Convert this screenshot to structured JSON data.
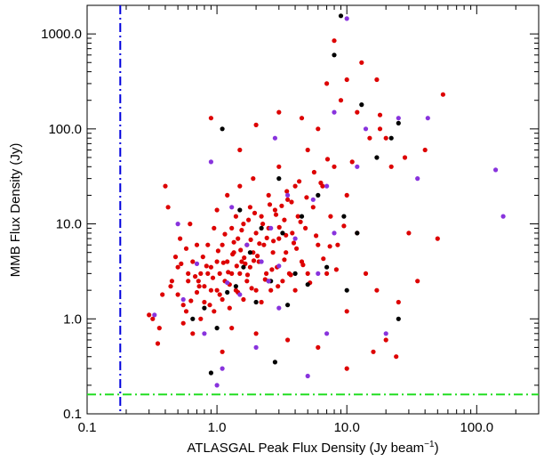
{
  "chart_data": {
    "type": "scatter",
    "xlabel": "ATLASGAL Peak Flux Density (Jy beam",
    "xlabel_superscript": "−1",
    "xlabel_suffix": ")",
    "ylabel": "MMB Flux Density (Jy)",
    "xscale": "log",
    "yscale": "log",
    "xlim": [
      0.1,
      300
    ],
    "ylim": [
      0.1,
      2000
    ],
    "xticks": [
      0.1,
      1,
      10,
      100
    ],
    "xtick_labels": [
      "0.1",
      "1.0",
      "10.0",
      "100.0"
    ],
    "yticks": [
      0.1,
      1,
      10,
      100,
      1000
    ],
    "ytick_labels": [
      "0.1",
      "1.0",
      "10.0",
      "100.0",
      "1000.0"
    ],
    "grid": false,
    "reference_lines": [
      {
        "orientation": "vertical",
        "value": 0.18,
        "color": "#0000dd",
        "style": "dash-dot"
      },
      {
        "orientation": "horizontal",
        "value": 0.16,
        "color": "#22dd22",
        "style": "dash-dot"
      }
    ],
    "series": [
      {
        "color": "#dd0000",
        "points": [
          [
            0.3,
            1.1
          ],
          [
            0.35,
            0.55
          ],
          [
            0.38,
            1.8
          ],
          [
            0.4,
            25
          ],
          [
            0.45,
            2.5
          ],
          [
            0.5,
            1.8
          ],
          [
            0.5,
            3.5
          ],
          [
            0.52,
            7
          ],
          [
            0.55,
            1.4
          ],
          [
            0.58,
            1.2
          ],
          [
            0.6,
            2.5
          ],
          [
            0.6,
            3
          ],
          [
            0.62,
            10
          ],
          [
            0.65,
            4
          ],
          [
            0.7,
            1.9
          ],
          [
            0.7,
            6
          ],
          [
            0.72,
            2.5
          ],
          [
            0.75,
            3
          ],
          [
            0.78,
            4.5
          ],
          [
            0.8,
            1.5
          ],
          [
            0.8,
            2.2
          ],
          [
            0.85,
            3
          ],
          [
            0.85,
            6
          ],
          [
            0.9,
            2
          ],
          [
            0.9,
            3.5
          ],
          [
            0.95,
            1.2
          ],
          [
            0.95,
            9
          ],
          [
            1.0,
            2
          ],
          [
            1.0,
            4
          ],
          [
            1.0,
            14
          ],
          [
            1.05,
            3
          ],
          [
            1.1,
            1.6
          ],
          [
            1.1,
            6
          ],
          [
            1.15,
            2.5
          ],
          [
            1.2,
            4
          ],
          [
            1.2,
            20
          ],
          [
            1.25,
            1.3
          ],
          [
            1.3,
            3
          ],
          [
            1.3,
            9
          ],
          [
            1.35,
            5
          ],
          [
            1.4,
            2
          ],
          [
            1.4,
            12
          ],
          [
            1.45,
            7
          ],
          [
            1.5,
            3
          ],
          [
            1.5,
            25
          ],
          [
            1.55,
            4
          ],
          [
            1.6,
            1.6
          ],
          [
            1.6,
            10
          ],
          [
            1.7,
            6
          ],
          [
            1.7,
            2.5
          ],
          [
            1.8,
            15
          ],
          [
            1.8,
            3.5
          ],
          [
            1.9,
            5
          ],
          [
            1.9,
            30
          ],
          [
            2.0,
            2
          ],
          [
            2.0,
            8
          ],
          [
            2.1,
            4
          ],
          [
            2.2,
            12
          ],
          [
            2.2,
            1.5
          ],
          [
            2.3,
            6
          ],
          [
            2.4,
            3
          ],
          [
            2.5,
            20
          ],
          [
            2.5,
            9
          ],
          [
            2.6,
            2
          ],
          [
            2.7,
            5
          ],
          [
            2.8,
            14
          ],
          [
            2.9,
            3.5
          ],
          [
            3.0,
            7
          ],
          [
            3.0,
            40
          ],
          [
            3.2,
            2.5
          ],
          [
            3.3,
            11
          ],
          [
            3.4,
            5
          ],
          [
            3.5,
            18
          ],
          [
            3.6,
            3
          ],
          [
            3.8,
            8
          ],
          [
            4.0,
            25
          ],
          [
            4.0,
            2
          ],
          [
            4.2,
            12
          ],
          [
            4.5,
            4
          ],
          [
            4.8,
            9
          ],
          [
            5.0,
            60
          ],
          [
            5.0,
            3
          ],
          [
            5.5,
            15
          ],
          [
            6.0,
            6
          ],
          [
            6.0,
            100
          ],
          [
            6.5,
            25
          ],
          [
            7.0,
            3
          ],
          [
            7.5,
            12
          ],
          [
            8.0,
            40
          ],
          [
            8.5,
            6
          ],
          [
            9.0,
            200
          ],
          [
            10.0,
            20
          ],
          [
            10.0,
            1.2
          ],
          [
            11.0,
            45
          ],
          [
            12.0,
            8
          ],
          [
            13.0,
            500
          ],
          [
            14.0,
            3
          ],
          [
            15.0,
            80
          ],
          [
            17.0,
            2
          ],
          [
            18.0,
            100
          ],
          [
            20.0,
            0.6
          ],
          [
            22.0,
            40
          ],
          [
            25.0,
            1.5
          ],
          [
            30.0,
            8
          ],
          [
            35.0,
            2.5
          ],
          [
            40.0,
            60
          ],
          [
            50.0,
            7
          ],
          [
            55.0,
            230
          ],
          [
            8.0,
            850
          ],
          [
            12.0,
            150
          ],
          [
            0.42,
            15
          ],
          [
            0.55,
            0.9
          ],
          [
            0.65,
            0.7
          ],
          [
            0.75,
            1.0
          ],
          [
            1.1,
            0.45
          ],
          [
            1.3,
            0.8
          ],
          [
            2.0,
            0.7
          ],
          [
            3.5,
            0.6
          ],
          [
            6.0,
            0.5
          ],
          [
            10.0,
            0.3
          ],
          [
            16.0,
            0.45
          ],
          [
            24.0,
            0.4
          ],
          [
            0.48,
            4.5
          ],
          [
            0.58,
            5.5
          ],
          [
            0.68,
            2.8
          ],
          [
            0.88,
            1.4
          ],
          [
            1.05,
            1.8
          ],
          [
            1.25,
            2.3
          ],
          [
            1.45,
            1.9
          ],
          [
            1.65,
            3.8
          ],
          [
            1.85,
            2.1
          ],
          [
            2.05,
            4.6
          ],
          [
            2.35,
            2.6
          ],
          [
            2.65,
            3.3
          ],
          [
            2.95,
            2.2
          ],
          [
            3.3,
            4.2
          ],
          [
            3.7,
            2.9
          ],
          [
            4.1,
            5.5
          ],
          [
            4.6,
            3.7
          ],
          [
            5.2,
            2.4
          ],
          [
            5.8,
            7.5
          ],
          [
            6.6,
            4.3
          ],
          [
            7.4,
            5.8
          ],
          [
            8.3,
            3.3
          ],
          [
            9.5,
            9.5
          ],
          [
            1.15,
            7.8
          ],
          [
            1.35,
            6.4
          ],
          [
            1.55,
            8.6
          ],
          [
            1.75,
            11
          ],
          [
            1.95,
            13
          ],
          [
            2.25,
            10
          ],
          [
            2.55,
            16
          ],
          [
            2.85,
            12.5
          ],
          [
            3.15,
            15.5
          ],
          [
            3.45,
            22
          ],
          [
            3.75,
            17
          ],
          [
            4.3,
            28
          ],
          [
            4.9,
            19
          ],
          [
            5.6,
            35
          ],
          [
            6.3,
            27
          ],
          [
            7.1,
            48
          ],
          [
            0.32,
            1.0
          ],
          [
            0.36,
            0.8
          ],
          [
            0.44,
            2.2
          ],
          [
            0.53,
            3.8
          ],
          [
            0.63,
            1.55
          ],
          [
            0.73,
            2.2
          ],
          [
            0.83,
            3.6
          ],
          [
            0.93,
            2.7
          ],
          [
            1.02,
            5.2
          ],
          [
            1.12,
            3.9
          ],
          [
            1.22,
            3.1
          ],
          [
            1.32,
            4.8
          ],
          [
            1.42,
            3.6
          ],
          [
            1.52,
            5.3
          ],
          [
            1.62,
            4.4
          ],
          [
            1.72,
            2.9
          ],
          [
            1.82,
            6.8
          ],
          [
            1.92,
            4.1
          ],
          [
            2.12,
            6.2
          ],
          [
            2.42,
            7.1
          ],
          [
            2.72,
            6.6
          ],
          [
            3.02,
            9.2
          ],
          [
            3.4,
            7.6
          ],
          [
            3.9,
            6.3
          ],
          [
            4.4,
            10.5
          ],
          [
            0.9,
            130
          ],
          [
            1.5,
            60
          ],
          [
            2.0,
            110
          ],
          [
            3.0,
            150
          ],
          [
            4.5,
            130
          ],
          [
            7.0,
            300
          ],
          [
            10.0,
            330
          ],
          [
            17.0,
            330
          ],
          [
            20.0,
            80
          ],
          [
            28.0,
            50
          ],
          [
            18.0,
            140
          ]
        ]
      },
      {
        "color": "#000000",
        "points": [
          [
            0.9,
            0.27
          ],
          [
            0.65,
            1.0
          ],
          [
            1.0,
            0.8
          ],
          [
            1.2,
            1.9
          ],
          [
            1.4,
            2.2
          ],
          [
            1.6,
            3.5
          ],
          [
            2.0,
            1.5
          ],
          [
            2.2,
            9
          ],
          [
            2.5,
            2.5
          ],
          [
            2.8,
            0.35
          ],
          [
            3.0,
            30
          ],
          [
            3.5,
            1.4
          ],
          [
            4.0,
            3
          ],
          [
            4.5,
            12
          ],
          [
            5.0,
            2.3
          ],
          [
            6.0,
            20
          ],
          [
            7.0,
            3.5
          ],
          [
            8.0,
            600
          ],
          [
            9.0,
            1550
          ],
          [
            9.5,
            12
          ],
          [
            10.0,
            2
          ],
          [
            12.0,
            8
          ],
          [
            13.0,
            180
          ],
          [
            17.0,
            50
          ],
          [
            22.0,
            80
          ],
          [
            25.0,
            1.0
          ],
          [
            25.0,
            115
          ],
          [
            1.1,
            100
          ],
          [
            1.5,
            14
          ],
          [
            0.8,
            1.3
          ],
          [
            3.2,
            8
          ],
          [
            1.8,
            5
          ],
          [
            2.6,
            2.5
          ]
        ]
      },
      {
        "color": "#8833dd",
        "points": [
          [
            0.33,
            1.1
          ],
          [
            0.55,
            1.6
          ],
          [
            0.7,
            3.8
          ],
          [
            0.8,
            0.7
          ],
          [
            0.9,
            45
          ],
          [
            1.0,
            0.2
          ],
          [
            1.1,
            0.3
          ],
          [
            1.3,
            15
          ],
          [
            1.5,
            1.8
          ],
          [
            1.7,
            6
          ],
          [
            2.0,
            0.5
          ],
          [
            2.2,
            4
          ],
          [
            2.5,
            2.5
          ],
          [
            2.8,
            80
          ],
          [
            3.0,
            1.3
          ],
          [
            3.5,
            20
          ],
          [
            4.0,
            7
          ],
          [
            5.0,
            0.25
          ],
          [
            5.5,
            18
          ],
          [
            6.0,
            3
          ],
          [
            7.0,
            0.7
          ],
          [
            7.0,
            25
          ],
          [
            8.0,
            150
          ],
          [
            8.0,
            8
          ],
          [
            10.0,
            1450
          ],
          [
            12.0,
            40
          ],
          [
            14.0,
            100
          ],
          [
            20.0,
            0.7
          ],
          [
            25.0,
            130
          ],
          [
            35.0,
            30
          ],
          [
            42.0,
            130
          ],
          [
            140.0,
            37
          ],
          [
            160.0,
            12
          ],
          [
            3.0,
            3.6
          ],
          [
            1.2,
            2.4
          ],
          [
            0.5,
            10
          ],
          [
            2.6,
            9
          ]
        ]
      }
    ]
  }
}
